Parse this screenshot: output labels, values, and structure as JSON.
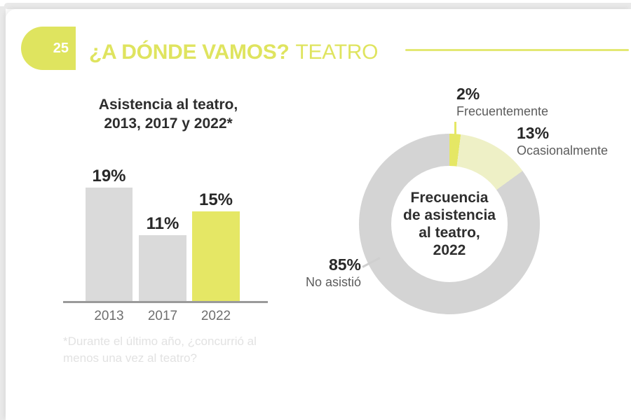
{
  "header": {
    "page_number": "25",
    "title_main": "¿A DÓNDE VAMOS?",
    "title_sub": "TEATRO"
  },
  "charts_text": {
    "bar_title_line1": "Asistencia al teatro,",
    "bar_title_line2": "2013, 2017 y 2022*",
    "footnote_line1": "*Durante el último año, ¿concurrió al",
    "footnote_line2": "menos una vez al teatro?",
    "donut_center_line1": "Frecuencia",
    "donut_center_line2": "de asistencia",
    "donut_center_line3": "al teatro,",
    "donut_center_line4": "2022"
  },
  "colors": {
    "accent_yellow": "#dfe45f",
    "series_yellow": "#e5e765",
    "pale_yellow": "#eef0c6",
    "series_gray": "#dadada",
    "donut_gray": "#d4d4d4",
    "axis_gray": "#9a9a9a",
    "text_dark": "#2d2d2d",
    "text_medium": "#5c5c5c",
    "text_year": "#6f6f6f",
    "footnote_gray": "#e2e2e2",
    "badge_text": "#ffffff"
  },
  "chart_data": [
    {
      "type": "bar",
      "title": "Asistencia al teatro, 2013, 2017 y 2022*",
      "categories": [
        "2013",
        "2017",
        "2022"
      ],
      "values": [
        19,
        11,
        15
      ],
      "value_labels": [
        "19%",
        "11%",
        "15%"
      ],
      "unit": "percent",
      "ylim": [
        0,
        20
      ],
      "bar_colors": [
        "#dadada",
        "#dadada",
        "#e5e765"
      ],
      "footnote": "*Durante el último año, ¿concurrió al menos una vez al teatro?"
    },
    {
      "type": "pie",
      "subtype": "donut",
      "title": "Frecuencia de asistencia al teatro, 2022",
      "categories": [
        "Frecuentemente",
        "Ocasionalmente",
        "No asistió"
      ],
      "values": [
        2,
        13,
        85
      ],
      "value_labels": [
        "2%",
        "13%",
        "85%"
      ],
      "colors": [
        "#e5e765",
        "#eef0c6",
        "#d4d4d4"
      ],
      "start_angle_deg": 0,
      "direction": "clockwise"
    }
  ]
}
